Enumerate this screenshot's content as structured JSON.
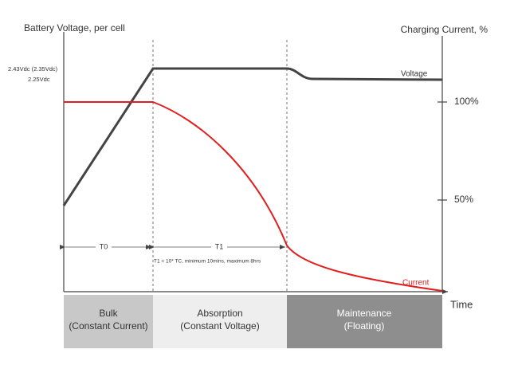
{
  "axes": {
    "left_title": "Battery Voltage, per cell",
    "right_title": "Charging Current, %",
    "voltage_levels": [
      "2.43Vdc (2.35Vdc)",
      "2.25Vdc"
    ],
    "right_ticks": [
      "100%",
      "50%"
    ],
    "x_title": "Time"
  },
  "curves": {
    "voltage": "Voltage",
    "current": "Current"
  },
  "durations": {
    "t0": "T0",
    "t1": "T1",
    "t1_note": "T1 = 10* TC, minimum 10mins, maximum 8hrs"
  },
  "phases": [
    {
      "name": "Bulk",
      "mode": "(Constant Current)"
    },
    {
      "name": "Absorption",
      "mode": "(Constant Voltage)"
    },
    {
      "name": "Maintenance",
      "mode": "(Floating)"
    }
  ]
}
